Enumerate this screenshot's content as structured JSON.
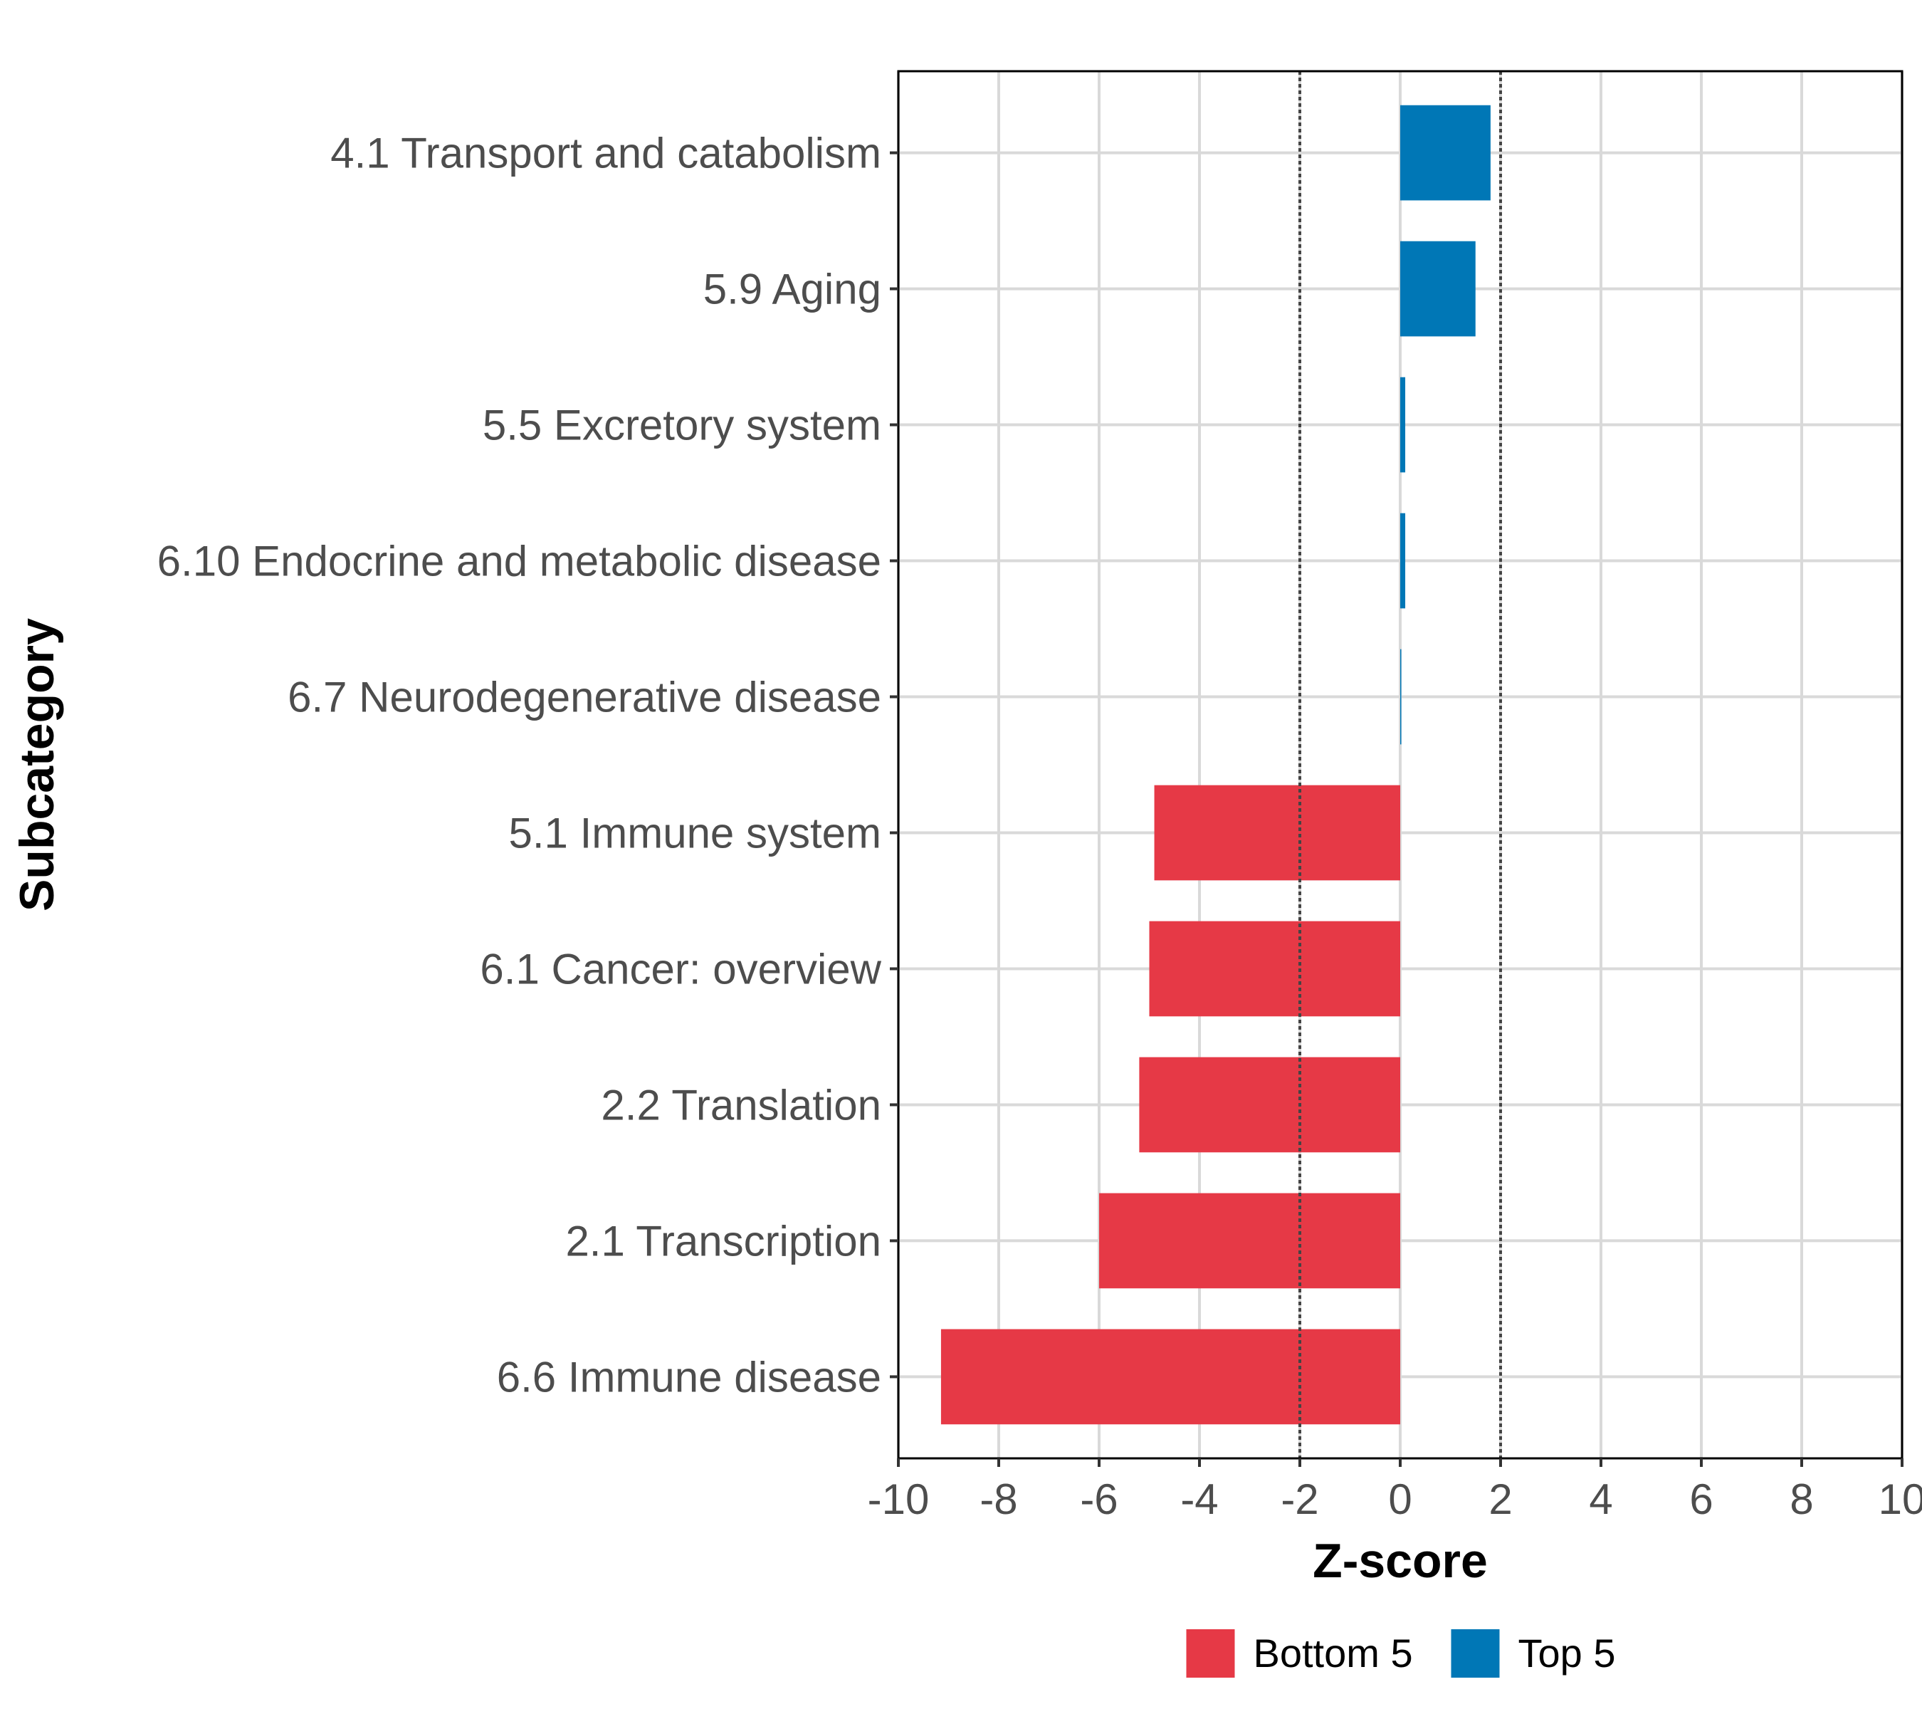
{
  "chart_data": {
    "type": "bar",
    "orientation": "horizontal",
    "xlabel": "Z-score",
    "ylabel": "Subcategory",
    "xlim": [
      -10,
      10
    ],
    "xticks": [
      -10,
      -8,
      -6,
      -4,
      -2,
      0,
      2,
      4,
      6,
      8,
      10
    ],
    "xtick_labels": [
      "-10",
      "-8",
      "-6",
      "-4",
      "-2",
      "0",
      "2",
      "4",
      "6",
      "8",
      "10"
    ],
    "reference_lines": [
      -2,
      2
    ],
    "grid": true,
    "legend_position": "bottom",
    "series_colors": {
      "Bottom 5": "#e63946",
      "Top 5": "#0077b6"
    },
    "legend": [
      {
        "label": "Bottom 5",
        "color": "#e63946"
      },
      {
        "label": "Top 5",
        "color": "#0077b6"
      }
    ],
    "categories": [
      "4.1 Transport and catabolism",
      "5.9 Aging",
      "5.5 Excretory system",
      "6.10 Endocrine and metabolic disease",
      "6.7 Neurodegenerative disease",
      "5.1 Immune system",
      "6.1 Cancer: overview",
      "2.2 Translation",
      "2.1 Transcription",
      "6.6 Immune disease"
    ],
    "values": [
      1.8,
      1.5,
      0.1,
      0.1,
      0.02,
      -4.9,
      -5.0,
      -5.2,
      -6.0,
      -9.15
    ],
    "groups": [
      "Top 5",
      "Top 5",
      "Top 5",
      "Top 5",
      "Top 5",
      "Bottom 5",
      "Bottom 5",
      "Bottom 5",
      "Bottom 5",
      "Bottom 5"
    ]
  }
}
